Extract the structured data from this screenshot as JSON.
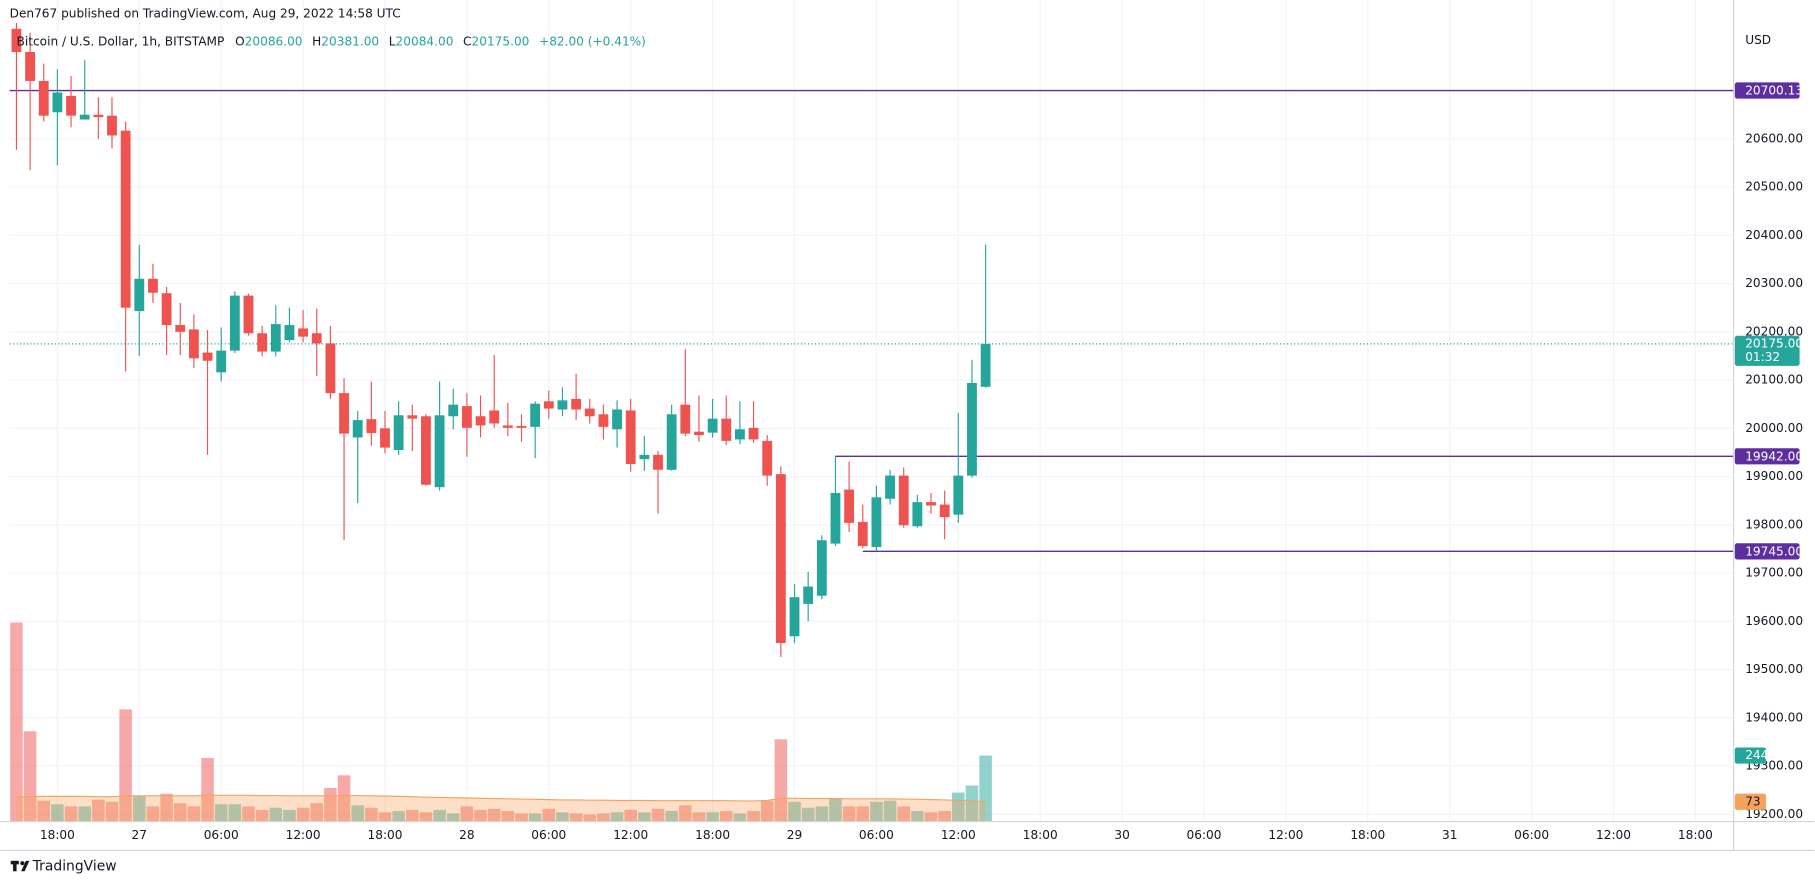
{
  "header": {
    "published": "Den767 published on TradingView.com, Aug 29, 2022 14:58 UTC"
  },
  "footer": {
    "brand": "TradingView"
  },
  "chart_data": {
    "type": "candlestick",
    "symbol": "Bitcoin / U.S. Dollar, 1h, BITSTAMP",
    "legend": [
      {
        "label": "O",
        "value": "20086.00"
      },
      {
        "label": "H",
        "value": "20381.00"
      },
      {
        "label": "L",
        "value": "20084.00"
      },
      {
        "label": "C",
        "value": "20175.00"
      }
    ],
    "change": "+82.00 (+0.41%)",
    "currency": "USD",
    "colors": {
      "up": "#26a69a",
      "down": "#ef5350",
      "level": "#5d2e9e",
      "volume_ma": "#f5a35c"
    },
    "open": [
      20828,
      20780,
      20720,
      20655,
      20689,
      20640,
      20650,
      20648,
      20617,
      20243,
      20310,
      20280,
      20214,
      20205,
      20157,
      20116,
      20161,
      20275,
      20197,
      20159,
      20183,
      20207,
      20197,
      20176,
      20073,
      19981,
      20019,
      20000,
      19955,
      20027,
      20025,
      19878,
      20025,
      20046,
      20025,
      20037,
      20006,
      20005,
      20003,
      20056,
      20039,
      20061,
      20041,
      20029,
      19998,
      20037,
      19936,
      19945,
      19914,
      20049,
      19993,
      19991,
      20020,
      19977,
      20001,
      19974,
      19905,
      19569,
      19636,
      19653,
      19761,
      19873,
      19806,
      19754,
      19854,
      19902,
      19797,
      19847,
      19842,
      19821,
      19902,
      20086
    ],
    "high": [
      20840,
      20820,
      20756,
      20744,
      20730,
      20763,
      20686,
      20686,
      20636,
      20380,
      20341,
      20293,
      20260,
      20236,
      20204,
      20209,
      20284,
      20279,
      20212,
      20255,
      20250,
      20245,
      20248,
      20212,
      20104,
      20036,
      20097,
      20036,
      20056,
      20049,
      20029,
      20097,
      20082,
      20073,
      20068,
      20152,
      20053,
      20029,
      20056,
      20078,
      20085,
      20113,
      20061,
      20049,
      20058,
      20061,
      19984,
      19953,
      20049,
      20164,
      20068,
      20061,
      20068,
      20056,
      20056,
      19986,
      19921,
      19677,
      19703,
      19778,
      19943,
      19931,
      19842,
      19881,
      19914,
      19919,
      19862,
      19866,
      19871,
      20032,
      20142,
      20381
    ],
    "low": [
      20577,
      20535,
      20636,
      20545,
      20624,
      20640,
      20600,
      20580,
      20118,
      20150,
      20260,
      20152,
      20152,
      20125,
      19945,
      20097,
      20156,
      20192,
      20149,
      20149,
      20178,
      20178,
      20108,
      20061,
      19768,
      19845,
      19964,
      19948,
      19945,
      19953,
      19881,
      19871,
      19998,
      19941,
      19981,
      20001,
      19984,
      19972,
      19938,
      20020,
      20025,
      20017,
      20010,
      19977,
      19960,
      19910,
      19912,
      19823,
      19912,
      19984,
      19972,
      19981,
      19965,
      19967,
      19970,
      19881,
      19526,
      19555,
      19600,
      19646,
      19756,
      19785,
      19751,
      19746,
      19842,
      19794,
      19794,
      19823,
      19770,
      19804,
      19898,
      20084
    ],
    "close": [
      20780,
      20720,
      20648,
      20696,
      20648,
      20650,
      20645,
      20607,
      20250,
      20310,
      20281,
      20214,
      20200,
      20145,
      20140,
      20161,
      20275,
      20197,
      20159,
      20216,
      20214,
      20190,
      20176,
      20073,
      19989,
      20017,
      19990,
      19960,
      20027,
      20020,
      19883,
      20027,
      20049,
      20001,
      20006,
      20010,
      20001,
      20001,
      20051,
      20041,
      20058,
      20039,
      20025,
      20003,
      20039,
      19926,
      19945,
      19914,
      20029,
      19989,
      19986,
      20020,
      19974,
      19998,
      19977,
      19902,
      19555,
      19650,
      19672,
      19768,
      19866,
      19804,
      19756,
      19857,
      19902,
      19799,
      19847,
      19840,
      19816,
      19902,
      20094,
      20175
    ],
    "volume": [
      736,
      334,
      77,
      64,
      56,
      56,
      81,
      73,
      415,
      94,
      56,
      103,
      68,
      56,
      235,
      64,
      64,
      56,
      43,
      51,
      43,
      51,
      68,
      124,
      171,
      60,
      51,
      34,
      39,
      43,
      34,
      43,
      30,
      56,
      43,
      47,
      39,
      30,
      30,
      47,
      34,
      30,
      26,
      30,
      34,
      43,
      34,
      47,
      39,
      60,
      34,
      34,
      39,
      30,
      39,
      77,
      304,
      73,
      51,
      56,
      86,
      56,
      56,
      73,
      77,
      56,
      39,
      34,
      39,
      107,
      133,
      244
    ],
    "volume_ma": [
      90,
      92,
      93,
      93,
      93,
      93,
      92,
      92,
      95,
      95,
      95,
      95,
      95,
      95,
      97,
      97,
      97,
      97,
      96,
      96,
      95,
      95,
      95,
      95,
      96,
      96,
      95,
      94,
      93,
      92,
      90,
      89,
      88,
      87,
      86,
      85,
      84,
      83,
      82,
      81,
      80,
      80,
      79,
      79,
      78,
      78,
      78,
      77,
      77,
      77,
      77,
      77,
      77,
      76,
      76,
      78,
      86,
      86,
      85,
      85,
      85,
      84,
      84,
      84,
      84,
      83,
      82,
      81,
      80,
      78,
      76,
      73
    ],
    "vlim": [
      0,
      2945
    ],
    "ylim": [
      19185,
      20835
    ],
    "yticks": [
      {
        "value": 19200,
        "label": "19200.00"
      },
      {
        "value": 19300,
        "label": "19300.00"
      },
      {
        "value": 19400,
        "label": "19400.00"
      },
      {
        "value": 19500,
        "label": "19500.00"
      },
      {
        "value": 19600,
        "label": "19600.00"
      },
      {
        "value": 19700,
        "label": "19700.00"
      },
      {
        "value": 19800,
        "label": "19800.00"
      },
      {
        "value": 19900,
        "label": "19900.00"
      },
      {
        "value": 20000,
        "label": "20000.00"
      },
      {
        "value": 20100,
        "label": "20100.00"
      },
      {
        "value": 20200,
        "label": "20200.00"
      },
      {
        "value": 20300,
        "label": "20300.00"
      },
      {
        "value": 20400,
        "label": "20400.00"
      },
      {
        "value": 20500,
        "label": "20500.00"
      },
      {
        "value": 20600,
        "label": "20600.00"
      }
    ],
    "xlim": [
      -0.5,
      125.8
    ],
    "xticks": [
      {
        "value": 3,
        "label": "18:00"
      },
      {
        "value": 9,
        "label": "27"
      },
      {
        "value": 15,
        "label": "06:00"
      },
      {
        "value": 21,
        "label": "12:00"
      },
      {
        "value": 27,
        "label": "18:00"
      },
      {
        "value": 33,
        "label": "28"
      },
      {
        "value": 39,
        "label": "06:00"
      },
      {
        "value": 45,
        "label": "12:00"
      },
      {
        "value": 51,
        "label": "18:00"
      },
      {
        "value": 57,
        "label": "29"
      },
      {
        "value": 63,
        "label": "06:00"
      },
      {
        "value": 69,
        "label": "12:00"
      },
      {
        "value": 75,
        "label": "18:00"
      },
      {
        "value": 81,
        "label": "30"
      },
      {
        "value": 87,
        "label": "06:00"
      },
      {
        "value": 93,
        "label": "12:00"
      },
      {
        "value": 99,
        "label": "18:00"
      },
      {
        "value": 105,
        "label": "31"
      },
      {
        "value": 111,
        "label": "06:00"
      },
      {
        "value": 117,
        "label": "12:00"
      },
      {
        "value": 123,
        "label": "18:00"
      }
    ],
    "grid": true,
    "levels": [
      {
        "value": 20700.13,
        "label": "20700.13"
      },
      {
        "value": 19942,
        "label": "19942.00",
        "from": 60
      },
      {
        "value": 19745,
        "label": "19745.00",
        "from": 62
      }
    ],
    "last_price": {
      "value": 20175,
      "label": "20175.00",
      "countdown": "01:32"
    }
  }
}
